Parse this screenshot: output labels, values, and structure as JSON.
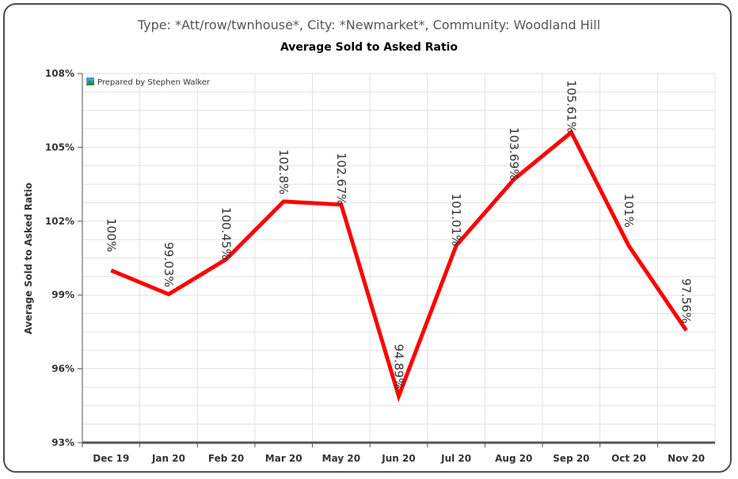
{
  "chart_data": {
    "type": "line",
    "subtitle": "Type: *Att/row/twnhouse*, City: *Newmarket*, Community: Woodland Hill",
    "title": "Average Sold to Asked Ratio",
    "xlabel": "",
    "ylabel": "Average Sold to Asked Ratio",
    "credit": "Prepared by Stephen Walker",
    "ylim": [
      93,
      108
    ],
    "y_ticks": [
      "93%",
      "96%",
      "99%",
      "102%",
      "105%",
      "108%"
    ],
    "y_tick_values": [
      93,
      96,
      99,
      102,
      105,
      108
    ],
    "categories": [
      "Dec 19",
      "Jan 20",
      "Feb 20",
      "Mar 20",
      "May 20",
      "Jun 20",
      "Jul 20",
      "Aug 20",
      "Sep 20",
      "Oct 20",
      "Nov 20"
    ],
    "values": [
      100,
      99.03,
      100.45,
      102.8,
      102.67,
      94.89,
      101.01,
      103.69,
      105.61,
      101,
      97.56
    ],
    "data_labels": [
      "100%",
      "99.03%",
      "100.45%",
      "102.8%",
      "102.67%",
      "94.89%",
      "101.01%",
      "103.69%",
      "105.61%",
      "101%",
      "97.56%"
    ],
    "line_color": "#ff0000",
    "grid": true
  }
}
